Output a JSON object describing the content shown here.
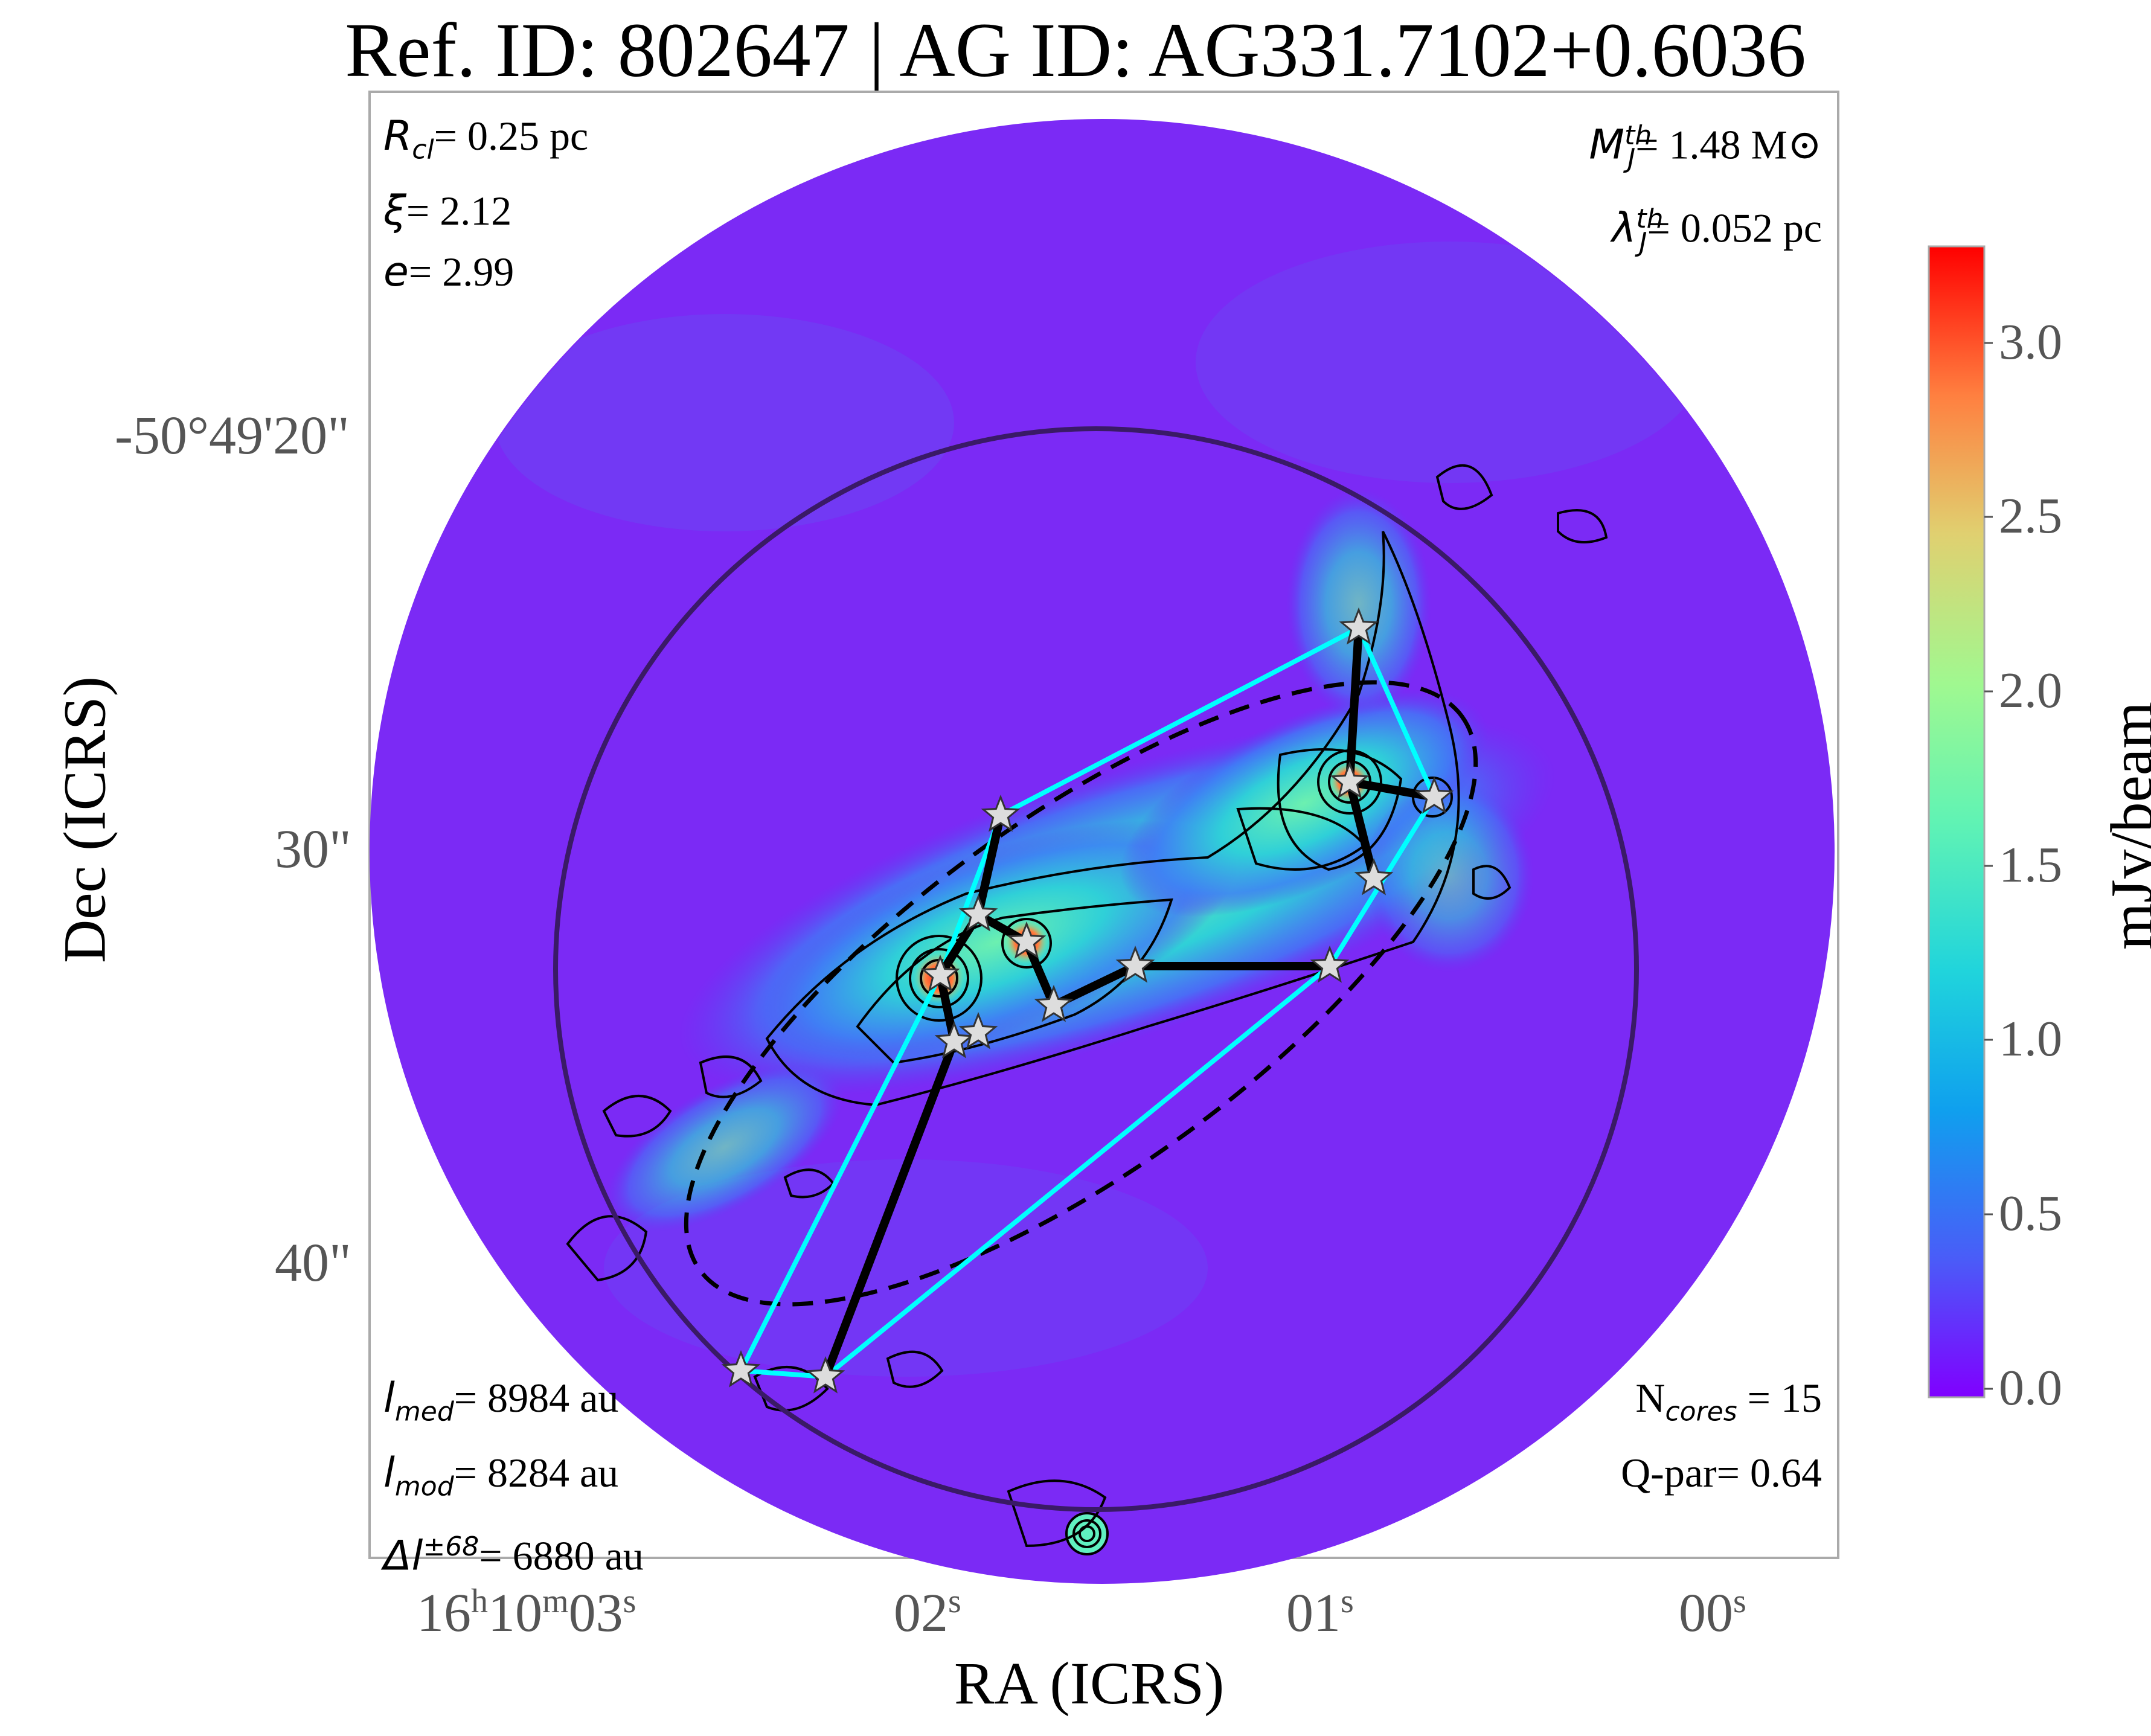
{
  "title": "Ref. ID: 802647 | AG ID: AG331.7102+0.6036",
  "axes": {
    "x_label": "RA (ICRS)",
    "y_label": "Dec (ICRS)",
    "x_ticks": [
      {
        "h": "16",
        "hu": "h",
        "m": "10",
        "mu": "m",
        "s": "03",
        "su": "s"
      },
      {
        "s": "02",
        "su": "s"
      },
      {
        "s": "01",
        "su": "s"
      },
      {
        "s": "00",
        "su": "s"
      }
    ],
    "y_ticks": [
      "-50°49'20\"",
      "30\"",
      "40\""
    ]
  },
  "annotations": {
    "top_left": [
      {
        "sym": "R",
        "sub": "cl",
        "text": "= 0.25 pc"
      },
      {
        "sym": "ξ",
        "text": "= 2.12"
      },
      {
        "sym": "e",
        "text": "= 2.99"
      }
    ],
    "top_right": [
      {
        "sym": "M",
        "sup": "th",
        "sub": "J",
        "text": "= 1.48 M⊙"
      },
      {
        "sym": "λ",
        "sup": "th",
        "sub": "J",
        "text": "= 0.052 pc"
      }
    ],
    "bottom_left": [
      {
        "sym": "l",
        "sub": "med",
        "text": "= 8984 au"
      },
      {
        "sym": "l",
        "sub": "mod",
        "text": "= 8284 au"
      },
      {
        "sym": "Δl",
        "sup": "±68",
        "text": "= 6880 au"
      }
    ],
    "bottom_right": [
      {
        "pre": "N",
        "sub": "cores",
        "text": " = 15"
      },
      {
        "text": "Q-par= 0.64"
      }
    ]
  },
  "colorbar": {
    "label": "mJy/beam",
    "ticks": [
      "0.0",
      "0.5",
      "1.0",
      "1.5",
      "2.0",
      "2.5",
      "3.0"
    ],
    "range": [
      0.0,
      3.3
    ],
    "colors": [
      "#8000ff",
      "#4a5cf8",
      "#00b4eb",
      "#3ae0d0",
      "#7ffa9e",
      "#c3ea7a",
      "#ffb360",
      "#ff6331",
      "#ff0000"
    ]
  },
  "image": {
    "background_color": "#7b2af5",
    "large_circle_color": "#3a1a66",
    "mst_color": "#000000",
    "hull_color": "#00ffff",
    "star_color": "#dddddd"
  }
}
